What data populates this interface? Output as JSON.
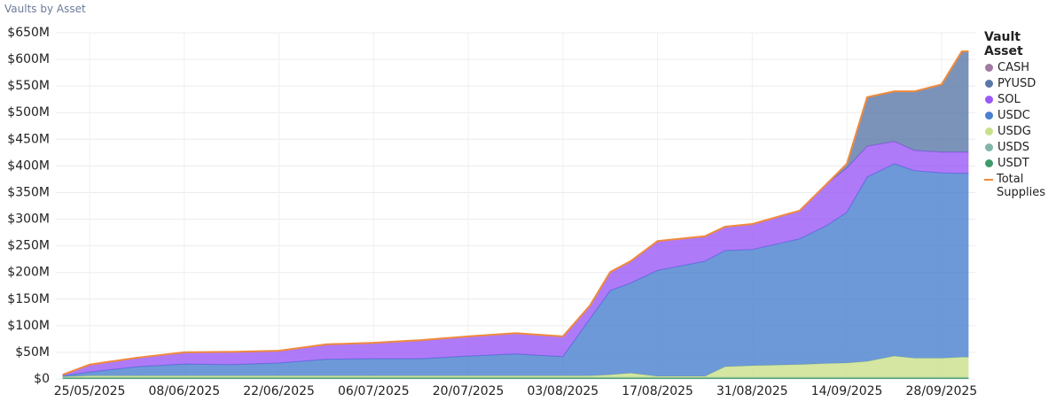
{
  "chart_data": {
    "type": "stacked_area",
    "title": "Vaults by Asset",
    "legend_title": "Vault Asset",
    "legend": "right",
    "x": [
      "21/05/2025",
      "25/05/2025",
      "01/06/2025",
      "08/06/2025",
      "15/06/2025",
      "22/06/2025",
      "29/06/2025",
      "06/07/2025",
      "13/07/2025",
      "20/07/2025",
      "27/07/2025",
      "03/08/2025",
      "07/08/2025",
      "10/08/2025",
      "13/08/2025",
      "17/08/2025",
      "24/08/2025",
      "27/08/2025",
      "31/08/2025",
      "07/09/2025",
      "11/09/2025",
      "14/09/2025",
      "17/09/2025",
      "21/09/2025",
      "24/09/2025",
      "28/09/2025",
      "01/10/2025",
      "02/10/2025"
    ],
    "series": [
      {
        "name": "USDT",
        "color": "#3f9a6a",
        "values": [
          2,
          2,
          2,
          2,
          2,
          2,
          2,
          2,
          2,
          2,
          2,
          2,
          2,
          2,
          2,
          2,
          2,
          2,
          2,
          2,
          2,
          2,
          2,
          2,
          2,
          2,
          2,
          2
        ]
      },
      {
        "name": "USDS",
        "color": "#7fb6a8",
        "values": [
          1,
          1,
          1,
          1,
          1,
          1,
          1,
          1,
          1,
          1,
          1,
          1,
          1,
          1,
          1,
          1,
          1,
          1,
          1,
          1,
          1,
          1,
          1,
          1,
          1,
          1,
          1,
          1
        ]
      },
      {
        "name": "USDG",
        "color": "#c9e08a",
        "values": [
          1,
          3,
          3,
          3,
          3,
          3,
          3,
          3,
          3,
          3,
          3,
          3,
          3,
          5,
          8,
          2,
          2,
          20,
          22,
          24,
          26,
          27,
          30,
          40,
          36,
          36,
          38,
          38
        ]
      },
      {
        "name": "USDC",
        "color": "#4a7fd0",
        "values": [
          2,
          7,
          17,
          22,
          21,
          24,
          31,
          32,
          32,
          37,
          41,
          36,
          107,
          158,
          169,
          199,
          216,
          218,
          218,
          236,
          259,
          283,
          346,
          361,
          352,
          348,
          345,
          345
        ]
      },
      {
        "name": "SOL",
        "color": "#9b59f6",
        "values": [
          2,
          14,
          17,
          22,
          24,
          23,
          28,
          30,
          35,
          37,
          39,
          38,
          25,
          35,
          41,
          55,
          47,
          45,
          48,
          53,
          78,
          83,
          58,
          42,
          38,
          39,
          40,
          40
        ]
      },
      {
        "name": "PYUSD",
        "color": "#5a78a8",
        "values": [
          0,
          0,
          0,
          0,
          0,
          0,
          0,
          0,
          0,
          0,
          0,
          0,
          0,
          0,
          0,
          0,
          0,
          0,
          0,
          0,
          0,
          8,
          92,
          94,
          111,
          127,
          189,
          189
        ]
      },
      {
        "name": "CASH",
        "color": "#a07aa0",
        "values": [
          0,
          0,
          0,
          0,
          0,
          0,
          0,
          0,
          0,
          0,
          0,
          0,
          0,
          0,
          0,
          0,
          0,
          0,
          0,
          0,
          0,
          0,
          0,
          0,
          0,
          0,
          0,
          0
        ]
      },
      {
        "name": "Total Supplies",
        "color": "#f08a3c",
        "kind": "line",
        "values": [
          8,
          27,
          40,
          50,
          51,
          53,
          65,
          68,
          73,
          80,
          86,
          80,
          138,
          201,
          221,
          259,
          268,
          286,
          291,
          316,
          366,
          404,
          529,
          540,
          540,
          553,
          615,
          615
        ]
      }
    ],
    "xlim": [
      "20/05/2025",
      "03/10/2025"
    ],
    "xticks": [
      "25/05/2025",
      "08/06/2025",
      "22/06/2025",
      "06/07/2025",
      "20/07/2025",
      "03/08/2025",
      "17/08/2025",
      "31/08/2025",
      "14/09/2025",
      "28/09/2025"
    ],
    "ylim": [
      0,
      650
    ],
    "yticks": [
      {
        "value": 0,
        "label": "$0"
      },
      {
        "value": 50,
        "label": "$50M"
      },
      {
        "value": 100,
        "label": "$100M"
      },
      {
        "value": 150,
        "label": "$150M"
      },
      {
        "value": 200,
        "label": "$200M"
      },
      {
        "value": 250,
        "label": "$250M"
      },
      {
        "value": 300,
        "label": "$300M"
      },
      {
        "value": 350,
        "label": "$350M"
      },
      {
        "value": 400,
        "label": "$400M"
      },
      {
        "value": 450,
        "label": "$450M"
      },
      {
        "value": 500,
        "label": "$500M"
      },
      {
        "value": 550,
        "label": "$550M"
      },
      {
        "value": 600,
        "label": "$600M"
      },
      {
        "value": 650,
        "label": "$650M"
      }
    ],
    "grid": true
  }
}
